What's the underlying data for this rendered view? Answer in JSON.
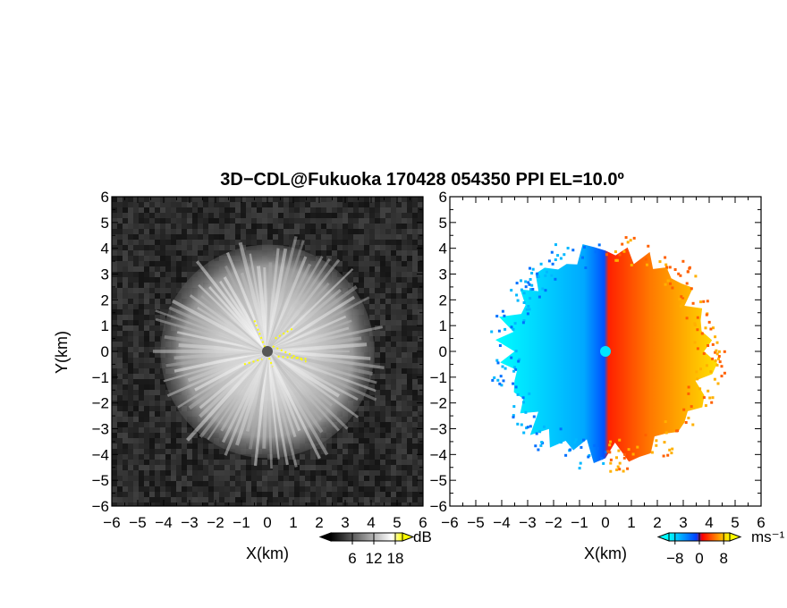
{
  "title": "3D−CDL@Fukuoka 170428 054350 PPI EL=10.0º",
  "chart_data": [
    {
      "type": "heatmap",
      "panel": "left",
      "quantity": "dB",
      "xlabel": "X(km)",
      "ylabel": "Y(km)",
      "xlim": [
        -6,
        6
      ],
      "ylim": [
        -6,
        6
      ],
      "xticks": [
        "−6",
        "−5",
        "−4",
        "−3",
        "−2",
        "−1",
        "0",
        "1",
        "2",
        "3",
        "4",
        "5",
        "6"
      ],
      "yticks": [
        "6",
        "5",
        "4",
        "3",
        "2",
        "1",
        "0",
        "−1",
        "−2",
        "−3",
        "−4",
        "−5",
        "−6"
      ],
      "colorbar": {
        "label": "dB",
        "ticks": [
          "6",
          "12",
          "18"
        ],
        "tick_values": [
          6,
          12,
          18
        ],
        "range": [
          0,
          20
        ],
        "colors": [
          "#000000",
          "#ffffff",
          "#ffff00"
        ]
      },
      "echo_radius_km": 4.2,
      "colors": {
        "background": "#2a2a2a",
        "echo": "#f0f0f0",
        "highlight": "#ffff00",
        "center": "#555555"
      }
    },
    {
      "type": "heatmap",
      "panel": "right",
      "quantity": "radial velocity",
      "xlabel": "X(km)",
      "ylabel": "",
      "xlim": [
        -6,
        6
      ],
      "ylim": [
        -6,
        6
      ],
      "xticks": [
        "−6",
        "−5",
        "−4",
        "−3",
        "−2",
        "−1",
        "0",
        "1",
        "2",
        "3",
        "4",
        "5",
        "6"
      ],
      "yticks": [
        "6",
        "5",
        "4",
        "3",
        "2",
        "1",
        "0",
        "−1",
        "−2",
        "−3",
        "−4",
        "−5",
        "−6"
      ],
      "colorbar": {
        "label": "ms⁻¹",
        "ticks": [
          "−8",
          "0",
          "8"
        ],
        "tick_values": [
          -8,
          0,
          8
        ],
        "range": [
          -10,
          10
        ],
        "colors": [
          "#00ffff",
          "#0050ff",
          "#ff0000",
          "#ffff00"
        ]
      },
      "echo_radius_km": 4.2,
      "colors": {
        "background": "#ffffff",
        "center": "#00e5ff"
      }
    }
  ]
}
